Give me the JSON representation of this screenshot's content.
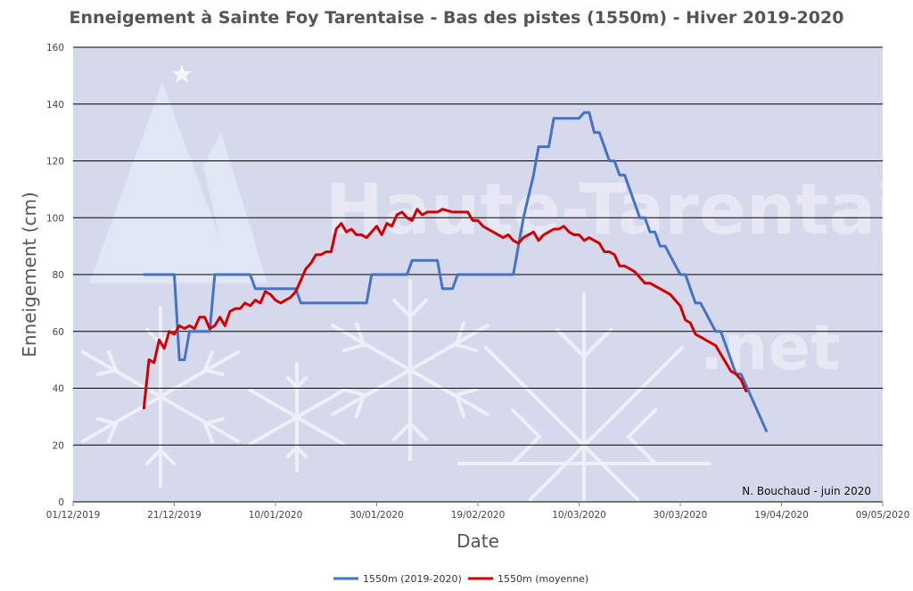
{
  "chart_data": {
    "type": "line",
    "title": "Enneigement à Sainte Foy Tarentaise - Bas des pistes (1550m) - Hiver 2019-2020",
    "xlabel": "Date",
    "ylabel": "Enneigement (cm)",
    "credit": "N. Bouchaud - juin 2020",
    "watermark": [
      "Haute-Tarentaise",
      ".net"
    ],
    "xlim": [
      "2019-12-01",
      "2020-05-09"
    ],
    "ylim": [
      0,
      160
    ],
    "x_ticks": [
      "01/12/2019",
      "21/12/2019",
      "10/01/2020",
      "30/01/2020",
      "19/02/2020",
      "10/03/2020",
      "30/03/2020",
      "19/04/2020",
      "09/05/2020"
    ],
    "y_ticks": [
      "0",
      "20",
      "40",
      "60",
      "80",
      "100",
      "120",
      "140",
      "160"
    ],
    "grid": true,
    "legend_position": "bottom",
    "plot_background": "#d6d8ec",
    "series": [
      {
        "name": "1550m (2019-2020)",
        "color": "#4472c4",
        "points": [
          [
            "2019-12-15",
            80
          ],
          [
            "2019-12-20",
            80
          ],
          [
            "2019-12-21",
            80
          ],
          [
            "2019-12-22",
            50
          ],
          [
            "2019-12-23",
            50
          ],
          [
            "2019-12-24",
            60
          ],
          [
            "2019-12-28",
            60
          ],
          [
            "2019-12-29",
            80
          ],
          [
            "2020-01-05",
            80
          ],
          [
            "2020-01-06",
            75
          ],
          [
            "2020-01-14",
            75
          ],
          [
            "2020-01-15",
            70
          ],
          [
            "2020-01-28",
            70
          ],
          [
            "2020-01-29",
            80
          ],
          [
            "2020-02-05",
            80
          ],
          [
            "2020-02-06",
            85
          ],
          [
            "2020-02-11",
            85
          ],
          [
            "2020-02-12",
            75
          ],
          [
            "2020-02-14",
            75
          ],
          [
            "2020-02-15",
            80
          ],
          [
            "2020-02-26",
            80
          ],
          [
            "2020-02-28",
            100
          ],
          [
            "2020-03-01",
            115
          ],
          [
            "2020-03-02",
            125
          ],
          [
            "2020-03-04",
            125
          ],
          [
            "2020-03-05",
            135
          ],
          [
            "2020-03-10",
            135
          ],
          [
            "2020-03-11",
            137
          ],
          [
            "2020-03-12",
            137
          ],
          [
            "2020-03-13",
            130
          ],
          [
            "2020-03-14",
            130
          ],
          [
            "2020-03-16",
            120
          ],
          [
            "2020-03-17",
            120
          ],
          [
            "2020-03-18",
            115
          ],
          [
            "2020-03-19",
            115
          ],
          [
            "2020-03-22",
            100
          ],
          [
            "2020-03-23",
            100
          ],
          [
            "2020-03-24",
            95
          ],
          [
            "2020-03-25",
            95
          ],
          [
            "2020-03-26",
            90
          ],
          [
            "2020-03-27",
            90
          ],
          [
            "2020-03-30",
            80
          ],
          [
            "2020-03-31",
            80
          ],
          [
            "2020-04-02",
            70
          ],
          [
            "2020-04-03",
            70
          ],
          [
            "2020-04-06",
            60
          ],
          [
            "2020-04-07",
            60
          ],
          [
            "2020-04-09",
            50
          ],
          [
            "2020-04-10",
            45
          ],
          [
            "2020-04-11",
            45
          ],
          [
            "2020-04-16",
            25
          ]
        ]
      },
      {
        "name": "1550m (moyenne)",
        "color": "#d00000",
        "points": [
          [
            "2019-12-15",
            33
          ],
          [
            "2019-12-16",
            50
          ],
          [
            "2019-12-17",
            49
          ],
          [
            "2019-12-18",
            57
          ],
          [
            "2019-12-19",
            54
          ],
          [
            "2019-12-20",
            60
          ],
          [
            "2019-12-21",
            59
          ],
          [
            "2019-12-22",
            62
          ],
          [
            "2019-12-23",
            61
          ],
          [
            "2019-12-24",
            62
          ],
          [
            "2019-12-25",
            61
          ],
          [
            "2019-12-26",
            65
          ],
          [
            "2019-12-27",
            65
          ],
          [
            "2019-12-28",
            61
          ],
          [
            "2019-12-29",
            62
          ],
          [
            "2019-12-30",
            65
          ],
          [
            "2019-12-31",
            62
          ],
          [
            "2020-01-01",
            67
          ],
          [
            "2020-01-02",
            68
          ],
          [
            "2020-01-03",
            68
          ],
          [
            "2020-01-04",
            70
          ],
          [
            "2020-01-05",
            69
          ],
          [
            "2020-01-06",
            71
          ],
          [
            "2020-01-07",
            70
          ],
          [
            "2020-01-08",
            74
          ],
          [
            "2020-01-09",
            73
          ],
          [
            "2020-01-10",
            71
          ],
          [
            "2020-01-11",
            70
          ],
          [
            "2020-01-12",
            71
          ],
          [
            "2020-01-13",
            72
          ],
          [
            "2020-01-14",
            74
          ],
          [
            "2020-01-15",
            78
          ],
          [
            "2020-01-16",
            82
          ],
          [
            "2020-01-17",
            84
          ],
          [
            "2020-01-18",
            87
          ],
          [
            "2020-01-19",
            87
          ],
          [
            "2020-01-20",
            88
          ],
          [
            "2020-01-21",
            88
          ],
          [
            "2020-01-22",
            96
          ],
          [
            "2020-01-23",
            98
          ],
          [
            "2020-01-24",
            95
          ],
          [
            "2020-01-25",
            96
          ],
          [
            "2020-01-26",
            94
          ],
          [
            "2020-01-27",
            94
          ],
          [
            "2020-01-28",
            93
          ],
          [
            "2020-01-29",
            95
          ],
          [
            "2020-01-30",
            97
          ],
          [
            "2020-01-31",
            94
          ],
          [
            "2020-02-01",
            98
          ],
          [
            "2020-02-02",
            97
          ],
          [
            "2020-02-03",
            101
          ],
          [
            "2020-02-04",
            102
          ],
          [
            "2020-02-05",
            100
          ],
          [
            "2020-02-06",
            99
          ],
          [
            "2020-02-07",
            103
          ],
          [
            "2020-02-08",
            101
          ],
          [
            "2020-02-09",
            102
          ],
          [
            "2020-02-10",
            102
          ],
          [
            "2020-02-11",
            102
          ],
          [
            "2020-02-12",
            103
          ],
          [
            "2020-02-14",
            102
          ],
          [
            "2020-02-16",
            102
          ],
          [
            "2020-02-17",
            102
          ],
          [
            "2020-02-18",
            99
          ],
          [
            "2020-02-19",
            99
          ],
          [
            "2020-02-20",
            97
          ],
          [
            "2020-02-21",
            96
          ],
          [
            "2020-02-22",
            95
          ],
          [
            "2020-02-23",
            94
          ],
          [
            "2020-02-24",
            93
          ],
          [
            "2020-02-25",
            94
          ],
          [
            "2020-02-26",
            92
          ],
          [
            "2020-02-27",
            91
          ],
          [
            "2020-02-28",
            93
          ],
          [
            "2020-02-29",
            94
          ],
          [
            "2020-03-01",
            95
          ],
          [
            "2020-03-02",
            92
          ],
          [
            "2020-03-03",
            94
          ],
          [
            "2020-03-04",
            95
          ],
          [
            "2020-03-05",
            96
          ],
          [
            "2020-03-06",
            96
          ],
          [
            "2020-03-07",
            97
          ],
          [
            "2020-03-08",
            95
          ],
          [
            "2020-03-09",
            94
          ],
          [
            "2020-03-10",
            94
          ],
          [
            "2020-03-11",
            92
          ],
          [
            "2020-03-12",
            93
          ],
          [
            "2020-03-13",
            92
          ],
          [
            "2020-03-14",
            91
          ],
          [
            "2020-03-15",
            88
          ],
          [
            "2020-03-16",
            88
          ],
          [
            "2020-03-17",
            87
          ],
          [
            "2020-03-18",
            83
          ],
          [
            "2020-03-19",
            83
          ],
          [
            "2020-03-20",
            82
          ],
          [
            "2020-03-21",
            81
          ],
          [
            "2020-03-22",
            79
          ],
          [
            "2020-03-23",
            77
          ],
          [
            "2020-03-24",
            77
          ],
          [
            "2020-03-25",
            76
          ],
          [
            "2020-03-26",
            75
          ],
          [
            "2020-03-27",
            74
          ],
          [
            "2020-03-28",
            73
          ],
          [
            "2020-03-29",
            71
          ],
          [
            "2020-03-30",
            69
          ],
          [
            "2020-03-31",
            64
          ],
          [
            "2020-04-01",
            63
          ],
          [
            "2020-04-02",
            59
          ],
          [
            "2020-04-03",
            58
          ],
          [
            "2020-04-04",
            57
          ],
          [
            "2020-04-05",
            56
          ],
          [
            "2020-04-06",
            55
          ],
          [
            "2020-04-07",
            52
          ],
          [
            "2020-04-08",
            49
          ],
          [
            "2020-04-09",
            46
          ],
          [
            "2020-04-10",
            45
          ],
          [
            "2020-04-11",
            43
          ],
          [
            "2020-04-12",
            39
          ]
        ]
      }
    ]
  }
}
